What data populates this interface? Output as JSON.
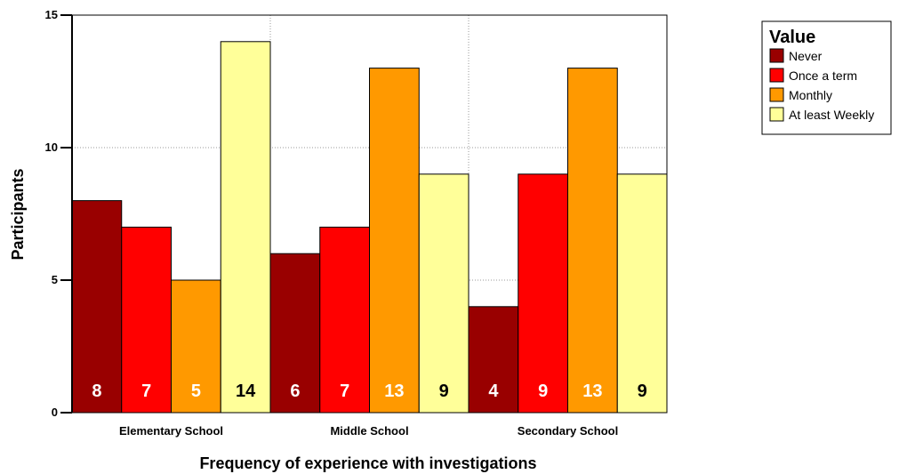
{
  "chart_data": {
    "type": "bar",
    "xlabel": "Frequency of experience with investigations",
    "ylabel": "Participants",
    "ylim": [
      0,
      15
    ],
    "yticks": [
      0,
      5,
      10,
      15
    ],
    "categories": [
      "Elementary School",
      "Middle School",
      "Secondary School"
    ],
    "legend_title": "Value",
    "legend_position": "top-right",
    "grid": true,
    "series": [
      {
        "name": "Never",
        "color": "#990000",
        "label_color": "#ffffff",
        "values": [
          8,
          6,
          4
        ]
      },
      {
        "name": "Once a term",
        "color": "#ff0000",
        "label_color": "#ffffff",
        "values": [
          7,
          7,
          9
        ]
      },
      {
        "name": "Monthly",
        "color": "#ff9900",
        "label_color": "#ffffff",
        "values": [
          5,
          13,
          13
        ]
      },
      {
        "name": "At least Weekly",
        "color": "#ffff99",
        "label_color": "#000000",
        "values": [
          14,
          9,
          9
        ]
      }
    ]
  }
}
